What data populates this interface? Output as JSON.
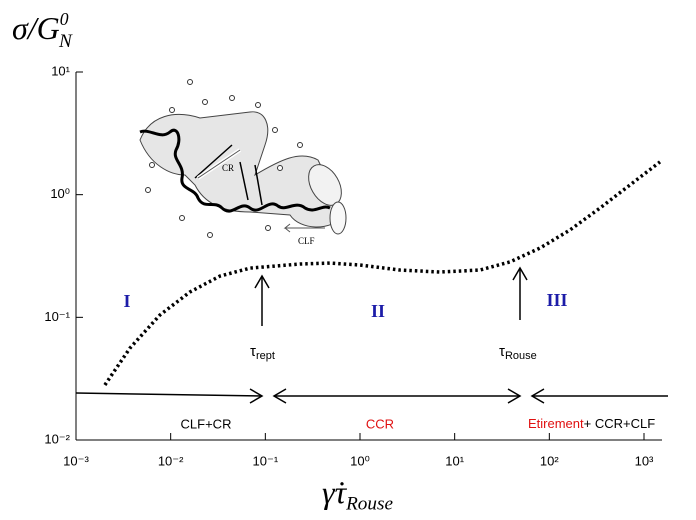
{
  "chart_data": {
    "type": "line",
    "ylabel": {
      "text": "σ/G",
      "sub": "N",
      "sup": "0"
    },
    "xlabel": {
      "text": "γ̇τ",
      "sub": "Rouse"
    },
    "xscale": "log",
    "yscale": "log",
    "xlim": [
      0.001,
      1000
    ],
    "ylim": [
      0.01,
      10
    ],
    "xticks": [
      {
        "value": 0.001,
        "label": "10⁻³"
      },
      {
        "value": 0.01,
        "label": "10⁻²"
      },
      {
        "value": 0.1,
        "label": "10⁻¹"
      },
      {
        "value": 1,
        "label": "10⁰"
      },
      {
        "value": 10,
        "label": "10¹"
      },
      {
        "value": 100,
        "label": "10²"
      },
      {
        "value": 1000,
        "label": "10³"
      }
    ],
    "yticks": [
      {
        "value": 0.01,
        "label": "10⁻²"
      },
      {
        "value": 0.1,
        "label": "10⁻¹"
      },
      {
        "value": 1,
        "label": "10⁰"
      },
      {
        "value": 10,
        "label": "10¹"
      }
    ],
    "x": [
      0.00202,
      0.00372,
      0.0077,
      0.016,
      0.0332,
      0.0689,
      0.232,
      0.482,
      1.0,
      2.64,
      7.0,
      18.5,
      38.4,
      79.6,
      165,
      343,
      711,
      1476
    ],
    "series": [
      {
        "name": null,
        "color": "#000000",
        "values": [
          0.0281,
          0.0562,
          0.1045,
          0.161,
          0.217,
          0.252,
          0.272,
          0.277,
          0.267,
          0.243,
          0.234,
          0.243,
          0.283,
          0.367,
          0.515,
          0.778,
          1.2,
          1.85
        ]
      }
    ],
    "regions": [
      "I",
      "II",
      "III"
    ],
    "region_color": "#1c1ca8",
    "times": [
      {
        "text": "τ",
        "sub": "rept"
      },
      {
        "text": "τ",
        "sub": "Rouse"
      }
    ],
    "mechanisms": [
      "CLF+CR",
      "CCR",
      "Etirement",
      "+ CCR+CLF"
    ],
    "mechanism_colors": [
      "#000000",
      "#e01010",
      "#e01010",
      "#000000"
    ],
    "inset": {
      "labels": [
        "CR",
        "CLF"
      ]
    }
  }
}
